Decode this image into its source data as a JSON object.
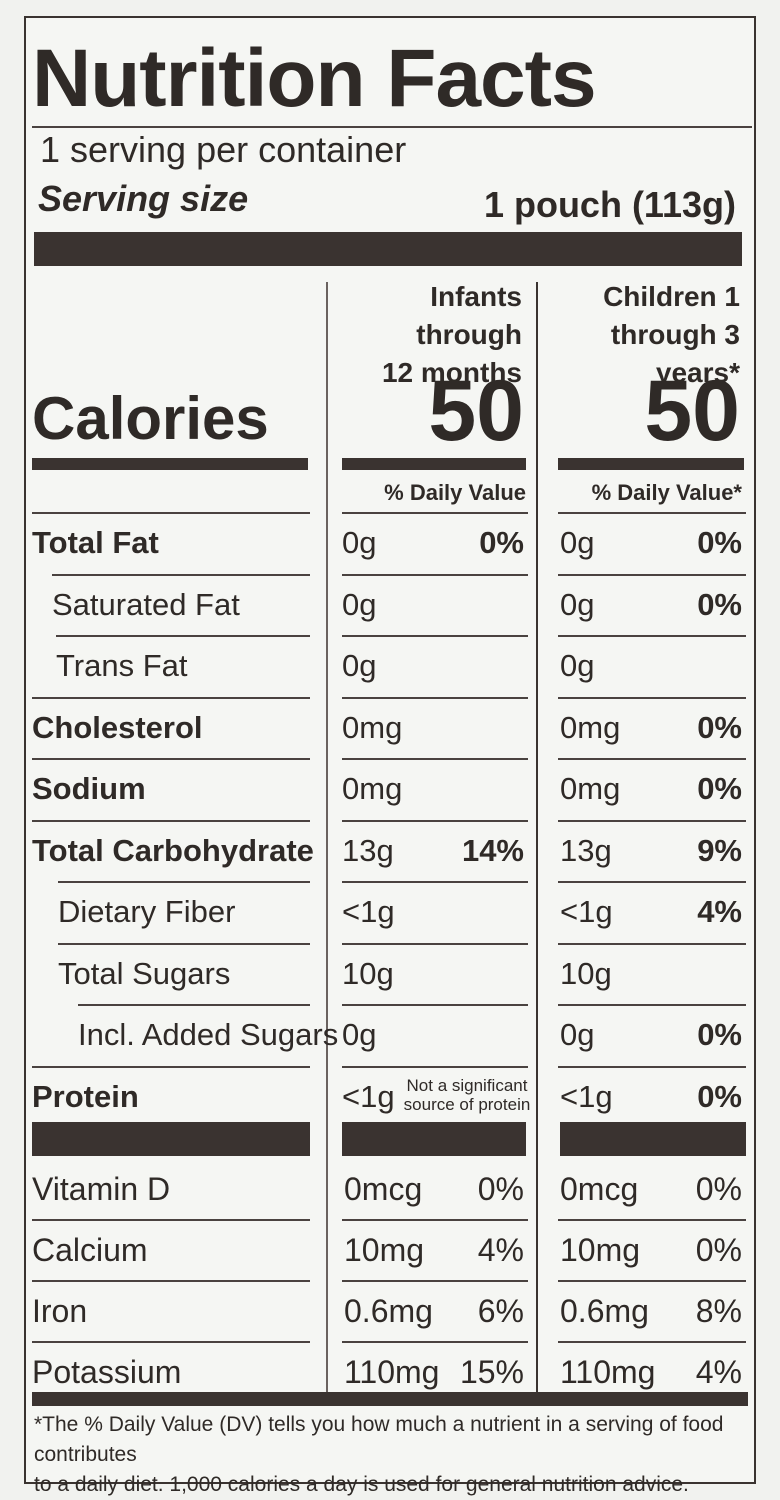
{
  "label": {
    "title": "Nutrition Facts",
    "servings_per_container": "1 serving per container",
    "serving_size_label": "Serving size",
    "serving_size_value": "1 pouch (113g)",
    "columns": [
      {
        "header_line1": "Infants through",
        "header_line2": "12 months",
        "calories": "50",
        "dv_header": "% Daily Value"
      },
      {
        "header_line1": "Children 1",
        "header_line2": "through 3 years*",
        "calories": "50",
        "dv_header": "% Daily Value*"
      }
    ],
    "calories_label": "Calories",
    "nutrients": [
      {
        "name": "Total Fat",
        "bold": true,
        "a_amount": "0g",
        "a_dv": "0%",
        "b_amount": "0g",
        "b_dv": "0%"
      },
      {
        "name": "Saturated Fat",
        "bold": false,
        "a_amount": "0g",
        "a_dv": "",
        "b_amount": "0g",
        "b_dv": "0%"
      },
      {
        "name": "Trans Fat",
        "bold": false,
        "a_amount": "0g",
        "a_dv": "",
        "b_amount": "0g",
        "b_dv": ""
      },
      {
        "name": "Cholesterol",
        "bold": true,
        "a_amount": "0mg",
        "a_dv": "",
        "b_amount": "0mg",
        "b_dv": "0%"
      },
      {
        "name": "Sodium",
        "bold": true,
        "a_amount": "0mg",
        "a_dv": "",
        "b_amount": "0mg",
        "b_dv": "0%"
      },
      {
        "name": "Total Carbohydrate",
        "bold": true,
        "a_amount": "13g",
        "a_dv": "14%",
        "b_amount": "13g",
        "b_dv": "9%"
      },
      {
        "name": "Dietary Fiber",
        "bold": false,
        "a_amount": "<1g",
        "a_dv": "",
        "b_amount": "<1g",
        "b_dv": "4%"
      },
      {
        "name": "Total Sugars",
        "bold": false,
        "a_amount": "10g",
        "a_dv": "",
        "b_amount": "10g",
        "b_dv": ""
      },
      {
        "name": "Incl. Added Sugars",
        "bold": false,
        "a_amount": "0g",
        "a_dv": "",
        "b_amount": "0g",
        "b_dv": "0%"
      },
      {
        "name": "Protein",
        "bold": true,
        "a_amount": "<1g",
        "a_dv": "",
        "b_amount": "<1g",
        "b_dv": "0%"
      }
    ],
    "protein_note_line1": "Not a significant",
    "protein_note_line2": "source of protein",
    "vitamins": [
      {
        "name": "Vitamin D",
        "a_amount": "0mcg",
        "a_dv": "0%",
        "b_amount": "0mcg",
        "b_dv": "0%"
      },
      {
        "name": "Calcium",
        "a_amount": "10mg",
        "a_dv": "4%",
        "b_amount": "10mg",
        "b_dv": "0%"
      },
      {
        "name": "Iron",
        "a_amount": "0.6mg",
        "a_dv": "6%",
        "b_amount": "0.6mg",
        "b_dv": "8%"
      },
      {
        "name": "Potassium",
        "a_amount": "110mg",
        "a_dv": "15%",
        "b_amount": "110mg",
        "b_dv": "4%"
      }
    ],
    "footnote_line1": "*The % Daily Value (DV) tells you how much a nutrient in a serving of food contributes",
    "footnote_line2": "to a daily diet. 1,000 calories a day is used for general nutrition advice.",
    "colors": {
      "ink": "#2f2a27",
      "bar": "#3a3330",
      "paper": "#f5f6f3"
    }
  }
}
